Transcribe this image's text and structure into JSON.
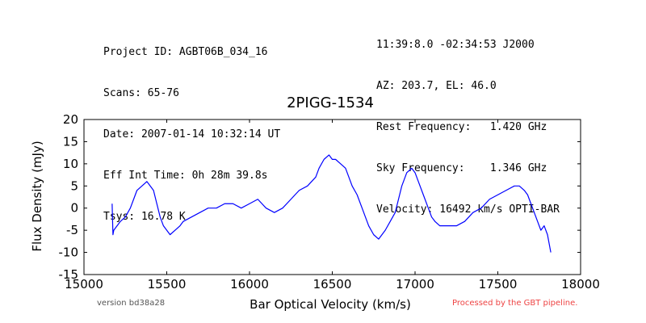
{
  "header": {
    "left": [
      "Project ID: AGBT06B_034_16",
      "Scans: 65-76",
      "Date: 2007-01-14 10:32:14 UT",
      "Eff Int Time: 0h 28m 39.8s",
      "Tsys: 16.78 K"
    ],
    "right": [
      "11:39:8.0 -02:34:53 J2000",
      "AZ: 203.7, EL: 46.0",
      "Rest Frequency:   1.420 GHz",
      "Sky Frequency:    1.346 GHz",
      "Velocity: 16492 km/s OPTI-BAR"
    ]
  },
  "footer": {
    "version": "version bd38a28",
    "processed": "Processed by the GBT pipeline."
  },
  "colors": {
    "series": "#0000ff",
    "axis": "#000000",
    "processed_text": "#ee4444"
  },
  "chart_data": {
    "type": "line",
    "title": "2PIGG-1534",
    "xlabel": "Bar Optical Velocity (km/s)",
    "ylabel": "Flux Density (mJy)",
    "xlim": [
      15000,
      18000
    ],
    "ylim": [
      -15,
      20
    ],
    "xticks": [
      15000,
      15500,
      16000,
      16500,
      17000,
      17500,
      18000
    ],
    "yticks": [
      -15,
      -10,
      -5,
      0,
      5,
      10,
      15,
      20
    ],
    "grid": false,
    "series": [
      {
        "x": [
          15170,
          15175,
          15180,
          15200,
          15220,
          15250,
          15280,
          15300,
          15320,
          15350,
          15380,
          15400,
          15420,
          15440,
          15460,
          15480,
          15500,
          15520,
          15550,
          15580,
          15600,
          15650,
          15700,
          15750,
          15800,
          15850,
          15900,
          15950,
          16000,
          16050,
          16100,
          16150,
          16200,
          16250,
          16300,
          16350,
          16400,
          16420,
          16450,
          16480,
          16500,
          16520,
          16550,
          16580,
          16600,
          16620,
          16650,
          16680,
          16700,
          16720,
          16750,
          16780,
          16800,
          16820,
          16850,
          16880,
          16900,
          16920,
          16950,
          16980,
          17000,
          17020,
          17050,
          17080,
          17100,
          17120,
          17150,
          17200,
          17250,
          17300,
          17350,
          17400,
          17450,
          17500,
          17550,
          17600,
          17630,
          17660,
          17680,
          17700,
          17720,
          17740,
          17760,
          17780,
          17800,
          17820
        ],
        "y": [
          1,
          -6,
          -5,
          -4,
          -3,
          -2,
          0,
          2,
          4,
          5,
          6,
          5,
          4,
          1,
          -2,
          -4,
          -5,
          -6,
          -5,
          -4,
          -3,
          -2,
          -1,
          0,
          0,
          1,
          1,
          0,
          1,
          2,
          0,
          -1,
          0,
          2,
          4,
          5,
          7,
          9,
          11,
          12,
          11,
          11,
          10,
          9,
          7,
          5,
          3,
          0,
          -2,
          -4,
          -6,
          -7,
          -6,
          -5,
          -3,
          -1,
          2,
          5,
          8,
          9,
          8,
          6,
          3,
          0,
          -2,
          -3,
          -4,
          -4,
          -4,
          -3,
          -1,
          0,
          2,
          3,
          4,
          5,
          5,
          4,
          3,
          1,
          -1,
          -3,
          -5,
          -4,
          -6,
          -10
        ]
      }
    ]
  }
}
